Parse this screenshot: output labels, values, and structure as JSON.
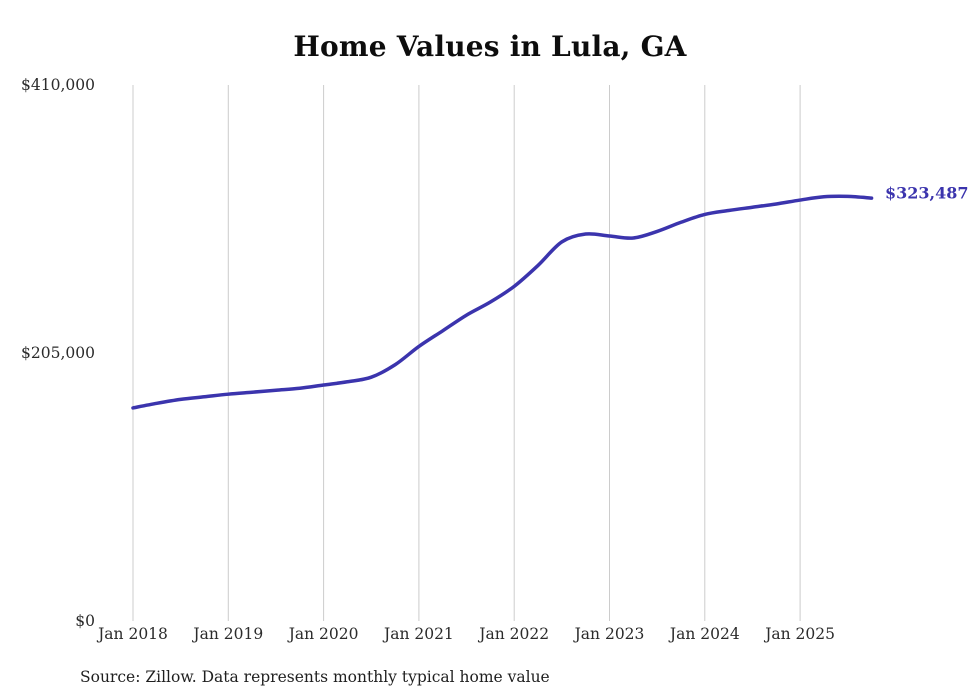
{
  "title": "Home Values in Lula, GA",
  "source_note": "Source: Zillow. Data represents monthly typical home value",
  "annotations": {
    "end_label": "$323,487"
  },
  "colors": {
    "line": "#3b34ad",
    "grid": "#cccccc",
    "title_text": "#0d0d0d",
    "axis_text": "#2b2b2b"
  },
  "chart_data": {
    "type": "line",
    "title": "Home Values in Lula, GA",
    "xlabel": "",
    "ylabel": "",
    "ylim": [
      0,
      410000
    ],
    "grid": "vertical-only",
    "legend": "none",
    "y_ticks": [
      {
        "value": 410000,
        "label": "$410,000"
      },
      {
        "value": 205000,
        "label": "$205,000"
      },
      {
        "value": 0,
        "label": "$0"
      }
    ],
    "x_ticks": [
      {
        "t": 2018,
        "label": "Jan 2018"
      },
      {
        "t": 2019,
        "label": "Jan 2019"
      },
      {
        "t": 2020,
        "label": "Jan 2020"
      },
      {
        "t": 2021,
        "label": "Jan 2021"
      },
      {
        "t": 2022,
        "label": "Jan 2022"
      },
      {
        "t": 2023,
        "label": "Jan 2023"
      },
      {
        "t": 2024,
        "label": "Jan 2024"
      },
      {
        "t": 2025,
        "label": "Jan 2025"
      }
    ],
    "series": [
      {
        "name": "Typical home value",
        "final_value": 323487,
        "final_label": "$323,487",
        "points": [
          {
            "t": 2018.0,
            "v": 163000
          },
          {
            "t": 2018.25,
            "v": 166500
          },
          {
            "t": 2018.5,
            "v": 169500
          },
          {
            "t": 2018.75,
            "v": 171500
          },
          {
            "t": 2019.0,
            "v": 173500
          },
          {
            "t": 2019.25,
            "v": 175000
          },
          {
            "t": 2019.5,
            "v": 176500
          },
          {
            "t": 2019.75,
            "v": 178000
          },
          {
            "t": 2020.0,
            "v": 180500
          },
          {
            "t": 2020.25,
            "v": 183000
          },
          {
            "t": 2020.5,
            "v": 186500
          },
          {
            "t": 2020.75,
            "v": 196000
          },
          {
            "t": 2021.0,
            "v": 210000
          },
          {
            "t": 2021.25,
            "v": 222000
          },
          {
            "t": 2021.5,
            "v": 234000
          },
          {
            "t": 2021.75,
            "v": 244000
          },
          {
            "t": 2022.0,
            "v": 256000
          },
          {
            "t": 2022.25,
            "v": 272000
          },
          {
            "t": 2022.5,
            "v": 290000
          },
          {
            "t": 2022.75,
            "v": 296000
          },
          {
            "t": 2023.0,
            "v": 294500
          },
          {
            "t": 2023.25,
            "v": 293000
          },
          {
            "t": 2023.5,
            "v": 298000
          },
          {
            "t": 2023.75,
            "v": 305000
          },
          {
            "t": 2024.0,
            "v": 311000
          },
          {
            "t": 2024.25,
            "v": 314000
          },
          {
            "t": 2024.5,
            "v": 316500
          },
          {
            "t": 2024.75,
            "v": 319000
          },
          {
            "t": 2025.0,
            "v": 322000
          },
          {
            "t": 2025.25,
            "v": 324500
          },
          {
            "t": 2025.5,
            "v": 324800
          },
          {
            "t": 2025.75,
            "v": 323487
          }
        ]
      }
    ]
  }
}
